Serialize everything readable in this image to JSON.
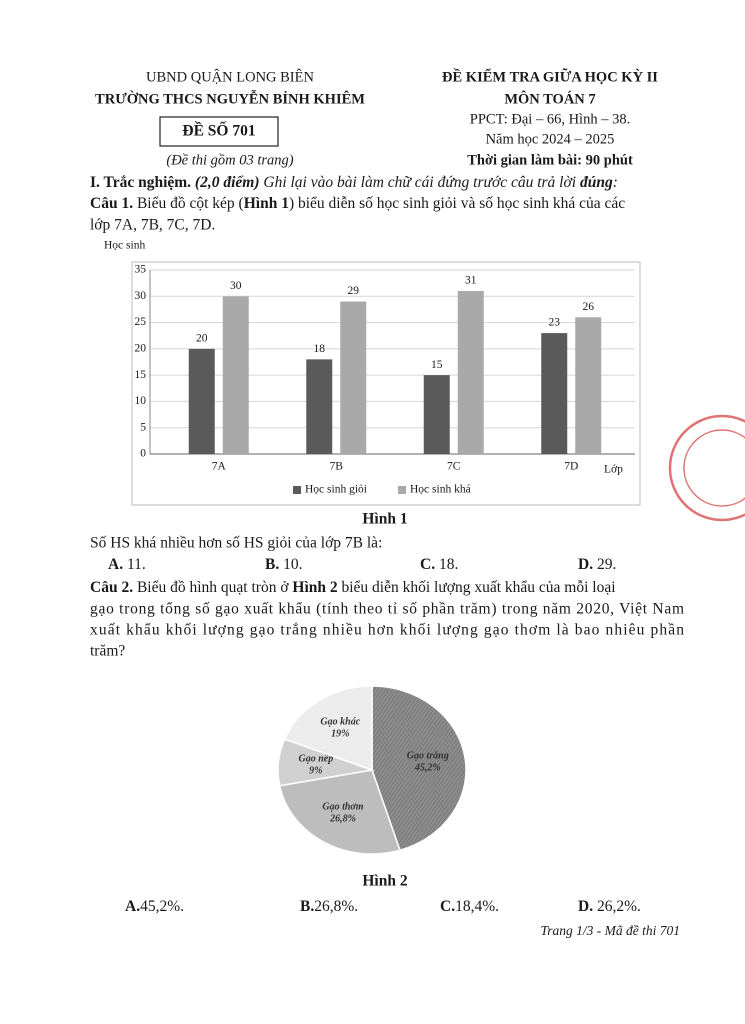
{
  "header": {
    "left": {
      "department": "UBND QUẬN LONG BIÊN",
      "school": "TRƯỜNG THCS NGUYỄN BỈNH KHIÊM",
      "exam_code": "ĐỀ SỐ 701",
      "pages_note": "(Đề thi gồm 03 trang)"
    },
    "right": {
      "title": "ĐỀ KIỂM TRA GIỮA HỌC KỲ II",
      "subject": "MÔN TOÁN 7",
      "ppct": "PPCT: Đại – 66, Hình – 38.",
      "year": "Năm học 2024 – 2025",
      "time": "Thời gian làm bài: 90 phút"
    }
  },
  "section": {
    "title": "I. Trắc nghiệm.",
    "points": " (2,0 điểm)",
    "instruction": " Ghi lại vào bài làm chữ cái đứng trước câu trả lời ",
    "emphasis": "đúng",
    "end": ":"
  },
  "question1": {
    "label": "Câu 1.",
    "text_before": " Biểu đồ cột kép (",
    "figure_ref": "Hình 1",
    "text_after": ") biểu diễn số học sinh giỏi và số học sinh khá của các",
    "text_line2": "lớp 7A, 7B, 7C, 7D.",
    "prompt": "Số HS khá nhiều hơn số HS giỏi của lớp 7B là:",
    "options": [
      {
        "letter": "A.",
        "text": " 11."
      },
      {
        "letter": "B.",
        "text": " 10."
      },
      {
        "letter": "C.",
        "text": " 18."
      },
      {
        "letter": "D.",
        "text": " 29."
      }
    ]
  },
  "figure1": {
    "type": "bar",
    "caption": "Hình 1",
    "y_label": "Học sinh",
    "x_label": "Lớp",
    "categories": [
      "7A",
      "7B",
      "7C",
      "7D"
    ],
    "series": [
      {
        "name": "Học sinh giỏi",
        "color": "#5a5a5a",
        "values": [
          20,
          18,
          15,
          23
        ]
      },
      {
        "name": "Học sinh khá",
        "color": "#a9a9a9",
        "values": [
          30,
          29,
          31,
          26
        ]
      }
    ],
    "ylim": [
      0,
      35
    ],
    "yticks": [
      0,
      5,
      10,
      15,
      20,
      25,
      30,
      35
    ],
    "grid": true
  },
  "question2": {
    "label": "Câu 2.",
    "text_before": " Biểu đồ hình quạt tròn ở ",
    "figure_ref": "Hình 2",
    "text_after": " biểu diễn khối lượng xuất khẩu của mỗi loại",
    "lines": [
      "gạo trong tổng số gạo xuất khẩu (tính theo tỉ số phần trăm) trong năm 2020, Việt Nam",
      "xuất khẩu khối lượng gạo trắng nhiều hơn khối lượng gạo thơm là bao nhiêu phần",
      "trăm?"
    ],
    "options": [
      {
        "letter": "A.",
        "text": "45,2%."
      },
      {
        "letter": "B.",
        "text": "26,8%."
      },
      {
        "letter": "C.",
        "text": "18,4%."
      },
      {
        "letter": "D.",
        "text": " 26,2%."
      }
    ]
  },
  "figure2": {
    "type": "pie",
    "caption": "Hình 2",
    "categories": [
      "Gạo trắng",
      "Gạo thơm",
      "Gạo nếp",
      "Gạo khác"
    ],
    "values": [
      45.2,
      26.8,
      9,
      19
    ],
    "value_labels": [
      "45,2%",
      "26,8%",
      "9%",
      "19%"
    ],
    "colors": [
      "#8c8c8c",
      "#bdbdbd",
      "#d0d0d0",
      "#ececec"
    ]
  },
  "footer": "Trang 1/3 - Mã đề thi 701"
}
